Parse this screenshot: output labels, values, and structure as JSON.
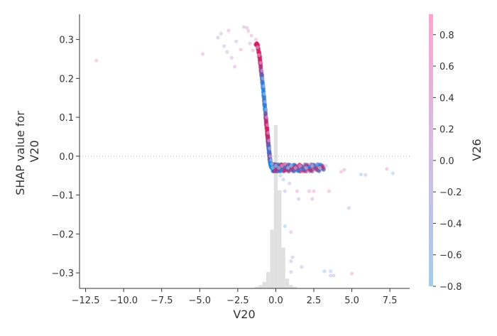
{
  "chart_data": {
    "type": "scatter",
    "title": "",
    "xlabel": "V20",
    "ylabel_lines": [
      "SHAP value for",
      "V20"
    ],
    "xlim": [
      -12.9,
      8.8
    ],
    "ylim": [
      -0.34,
      0.365
    ],
    "xticks": [
      -12.5,
      -10.0,
      -7.5,
      -5.0,
      -2.5,
      0.0,
      2.5,
      5.0,
      7.5
    ],
    "xtick_labels": [
      "−12.5",
      "−10.0",
      "−7.5",
      "−5.0",
      "−2.5",
      "0.0",
      "2.5",
      "5.0",
      "7.5"
    ],
    "yticks": [
      -0.3,
      -0.2,
      -0.1,
      0.0,
      0.1,
      0.2,
      0.3
    ],
    "ytick_labels": [
      "−0.3",
      "−0.2",
      "−0.1",
      "0.0",
      "0.1",
      "0.2",
      "0.3"
    ],
    "zero_line": true,
    "grid": false,
    "colorbar": {
      "label": "V26",
      "range": [
        -0.8,
        0.93
      ],
      "ticks": [
        0.8,
        0.6,
        0.4,
        0.2,
        0.0,
        -0.2,
        -0.4,
        -0.6,
        -0.8
      ],
      "tick_labels": [
        "0.8",
        "0.6",
        "0.4",
        "0.2",
        "0.0",
        "−0.2",
        "−0.4",
        "−0.6",
        "−0.8"
      ],
      "color_low": "#a3cdec",
      "color_high": "#f7a8cf"
    },
    "histogram": {
      "color": "#e0e0e0",
      "bin_width": 0.25,
      "bins": [
        {
          "x": -1.25,
          "f": 0.01
        },
        {
          "x": -1.0,
          "f": 0.02
        },
        {
          "x": -0.75,
          "f": 0.04
        },
        {
          "x": -0.5,
          "f": 0.1
        },
        {
          "x": -0.25,
          "f": 0.36
        },
        {
          "x": 0.0,
          "f": 1.0
        },
        {
          "x": 0.25,
          "f": 0.6
        },
        {
          "x": 0.5,
          "f": 0.25
        },
        {
          "x": 0.75,
          "f": 0.06
        },
        {
          "x": 1.0,
          "f": 0.02
        },
        {
          "x": 1.25,
          "f": 0.01
        }
      ]
    },
    "points": [
      {
        "x": -11.8,
        "y": 0.246,
        "c": 0.8
      },
      {
        "x": -4.8,
        "y": 0.263,
        "c": 0.7
      },
      {
        "x": -3.8,
        "y": 0.305,
        "c": -0.2
      },
      {
        "x": -3.6,
        "y": 0.315,
        "c": 0.1
      },
      {
        "x": -3.4,
        "y": 0.283,
        "c": 0.0
      },
      {
        "x": -3.2,
        "y": 0.268,
        "c": 0.2
      },
      {
        "x": -3.1,
        "y": 0.323,
        "c": 0.6
      },
      {
        "x": -2.9,
        "y": 0.253,
        "c": 0.3
      },
      {
        "x": -2.7,
        "y": 0.23,
        "c": 0.5
      },
      {
        "x": -2.6,
        "y": 0.295,
        "c": -0.3
      },
      {
        "x": -2.3,
        "y": 0.274,
        "c": 0.8
      },
      {
        "x": -2.1,
        "y": 0.332,
        "c": 0.3
      },
      {
        "x": -1.9,
        "y": 0.33,
        "c": 0.5
      },
      {
        "x": -1.8,
        "y": 0.322,
        "c": 0.7
      },
      {
        "x": -1.7,
        "y": 0.29,
        "c": 0.4
      },
      {
        "x": -1.6,
        "y": 0.31,
        "c": 0.6
      },
      {
        "x": -1.5,
        "y": 0.272,
        "c": 0.1
      },
      {
        "x": -1.3,
        "y": 0.3,
        "c": 0.8
      },
      {
        "x": -1.2,
        "y": 0.28,
        "c": -0.1
      },
      {
        "x": -1.1,
        "y": 0.26,
        "c": 0.7
      },
      {
        "x": -1.0,
        "y": 0.24,
        "c": 0.5
      },
      {
        "x": -0.9,
        "y": 0.22,
        "c": 0.3
      },
      {
        "x": -0.85,
        "y": 0.2,
        "c": -0.6
      },
      {
        "x": -0.8,
        "y": 0.18,
        "c": -0.4
      },
      {
        "x": -0.75,
        "y": 0.16,
        "c": -0.7
      },
      {
        "x": -0.7,
        "y": 0.14,
        "c": -0.5
      },
      {
        "x": -0.65,
        "y": 0.12,
        "c": -0.6
      },
      {
        "x": -0.6,
        "y": 0.1,
        "c": 0.5
      },
      {
        "x": -0.55,
        "y": 0.08,
        "c": 0.6
      },
      {
        "x": -0.5,
        "y": 0.06,
        "c": 0.4
      },
      {
        "x": -0.45,
        "y": 0.04,
        "c": 0.3
      },
      {
        "x": -0.4,
        "y": 0.02,
        "c": 0.1
      },
      {
        "x": -0.35,
        "y": 0.0,
        "c": 0.2
      },
      {
        "x": -0.3,
        "y": -0.01,
        "c": -0.2
      },
      {
        "x": -0.25,
        "y": -0.02,
        "c": -0.4
      },
      {
        "x": -0.2,
        "y": -0.03,
        "c": -0.7
      },
      {
        "x": 0.0,
        "y": -0.025,
        "c": -0.7
      },
      {
        "x": 0.2,
        "y": -0.03,
        "c": -0.6
      },
      {
        "x": 0.4,
        "y": -0.025,
        "c": 0.6
      },
      {
        "x": 0.6,
        "y": -0.02,
        "c": 0.8
      },
      {
        "x": 0.8,
        "y": -0.03,
        "c": 0.5
      },
      {
        "x": 1.0,
        "y": -0.025,
        "c": -0.5
      },
      {
        "x": 1.3,
        "y": -0.03,
        "c": 0.3
      },
      {
        "x": 1.6,
        "y": -0.025,
        "c": 0.7
      },
      {
        "x": 2.0,
        "y": -0.03,
        "c": 0.4
      },
      {
        "x": 2.4,
        "y": -0.025,
        "c": 0.5
      },
      {
        "x": 2.9,
        "y": -0.03,
        "c": -0.4
      },
      {
        "x": 3.3,
        "y": -0.025,
        "c": -0.2
      },
      {
        "x": 0.3,
        "y": -0.05,
        "c": -0.7
      },
      {
        "x": 0.5,
        "y": -0.06,
        "c": -0.5
      },
      {
        "x": 0.6,
        "y": -0.09,
        "c": -0.3
      },
      {
        "x": 0.9,
        "y": -0.07,
        "c": 0.2
      },
      {
        "x": 1.4,
        "y": -0.09,
        "c": 0.5
      },
      {
        "x": 1.5,
        "y": -0.11,
        "c": 0.1
      },
      {
        "x": 2.2,
        "y": -0.09,
        "c": 0.8
      },
      {
        "x": 2.5,
        "y": -0.09,
        "c": 0.8
      },
      {
        "x": 2.4,
        "y": -0.11,
        "c": 0.4
      },
      {
        "x": 3.5,
        "y": -0.09,
        "c": 0.6
      },
      {
        "x": 4.3,
        "y": -0.04,
        "c": 0.6
      },
      {
        "x": 4.5,
        "y": -0.035,
        "c": 0.4
      },
      {
        "x": 5.6,
        "y": -0.047,
        "c": -0.7
      },
      {
        "x": 5.9,
        "y": -0.048,
        "c": -0.3
      },
      {
        "x": 7.3,
        "y": -0.033,
        "c": 0.4
      },
      {
        "x": 7.7,
        "y": -0.044,
        "c": -0.6
      },
      {
        "x": 4.8,
        "y": -0.133,
        "c": -0.4
      },
      {
        "x": 0.6,
        "y": -0.18,
        "c": -0.7
      },
      {
        "x": 1.0,
        "y": -0.195,
        "c": 0.2
      },
      {
        "x": 1.1,
        "y": -0.26,
        "c": -0.3
      },
      {
        "x": 1.0,
        "y": -0.27,
        "c": -0.1
      },
      {
        "x": 1.7,
        "y": -0.285,
        "c": -0.2
      },
      {
        "x": 1.0,
        "y": -0.298,
        "c": -0.4
      },
      {
        "x": 3.2,
        "y": -0.296,
        "c": -0.7
      },
      {
        "x": 3.6,
        "y": -0.296,
        "c": -0.5
      },
      {
        "x": 3.6,
        "y": -0.307,
        "c": -0.3
      },
      {
        "x": 3.8,
        "y": -0.307,
        "c": -0.2
      },
      {
        "x": 5.0,
        "y": -0.302,
        "c": 0.6
      }
    ],
    "curve": [
      [
        -1.3,
        0.29,
        0.86
      ],
      [
        -1.2,
        0.285,
        0.9
      ],
      [
        -1.1,
        0.265,
        0.88
      ],
      [
        -1.05,
        0.25,
        0.86
      ],
      [
        -1.0,
        0.235,
        0.7
      ],
      [
        -0.95,
        0.215,
        0.2
      ],
      [
        -0.9,
        0.2,
        -0.3
      ],
      [
        -0.85,
        0.18,
        -0.6
      ],
      [
        -0.8,
        0.16,
        -0.7
      ],
      [
        -0.75,
        0.14,
        -0.5
      ],
      [
        -0.7,
        0.12,
        -0.7
      ],
      [
        -0.66,
        0.1,
        0.3
      ],
      [
        -0.62,
        0.085,
        0.7
      ],
      [
        -0.58,
        0.07,
        0.9
      ],
      [
        -0.55,
        0.055,
        0.85
      ],
      [
        -0.52,
        0.045,
        0.6
      ],
      [
        -0.5,
        0.035,
        0.3
      ],
      [
        -0.47,
        0.025,
        -0.2
      ],
      [
        -0.45,
        0.015,
        -0.5
      ],
      [
        -0.42,
        0.005,
        -0.3
      ],
      [
        -0.4,
        -0.005,
        0.2
      ],
      [
        -0.37,
        -0.013,
        -0.6
      ],
      [
        -0.34,
        -0.02,
        -0.75
      ],
      [
        -0.3,
        -0.025,
        -0.7
      ],
      [
        -0.25,
        -0.03,
        -0.78
      ]
    ],
    "band": {
      "x_start": -0.2,
      "x_end": 3.2,
      "y_top": -0.02,
      "y_bottom": -0.04
    }
  }
}
